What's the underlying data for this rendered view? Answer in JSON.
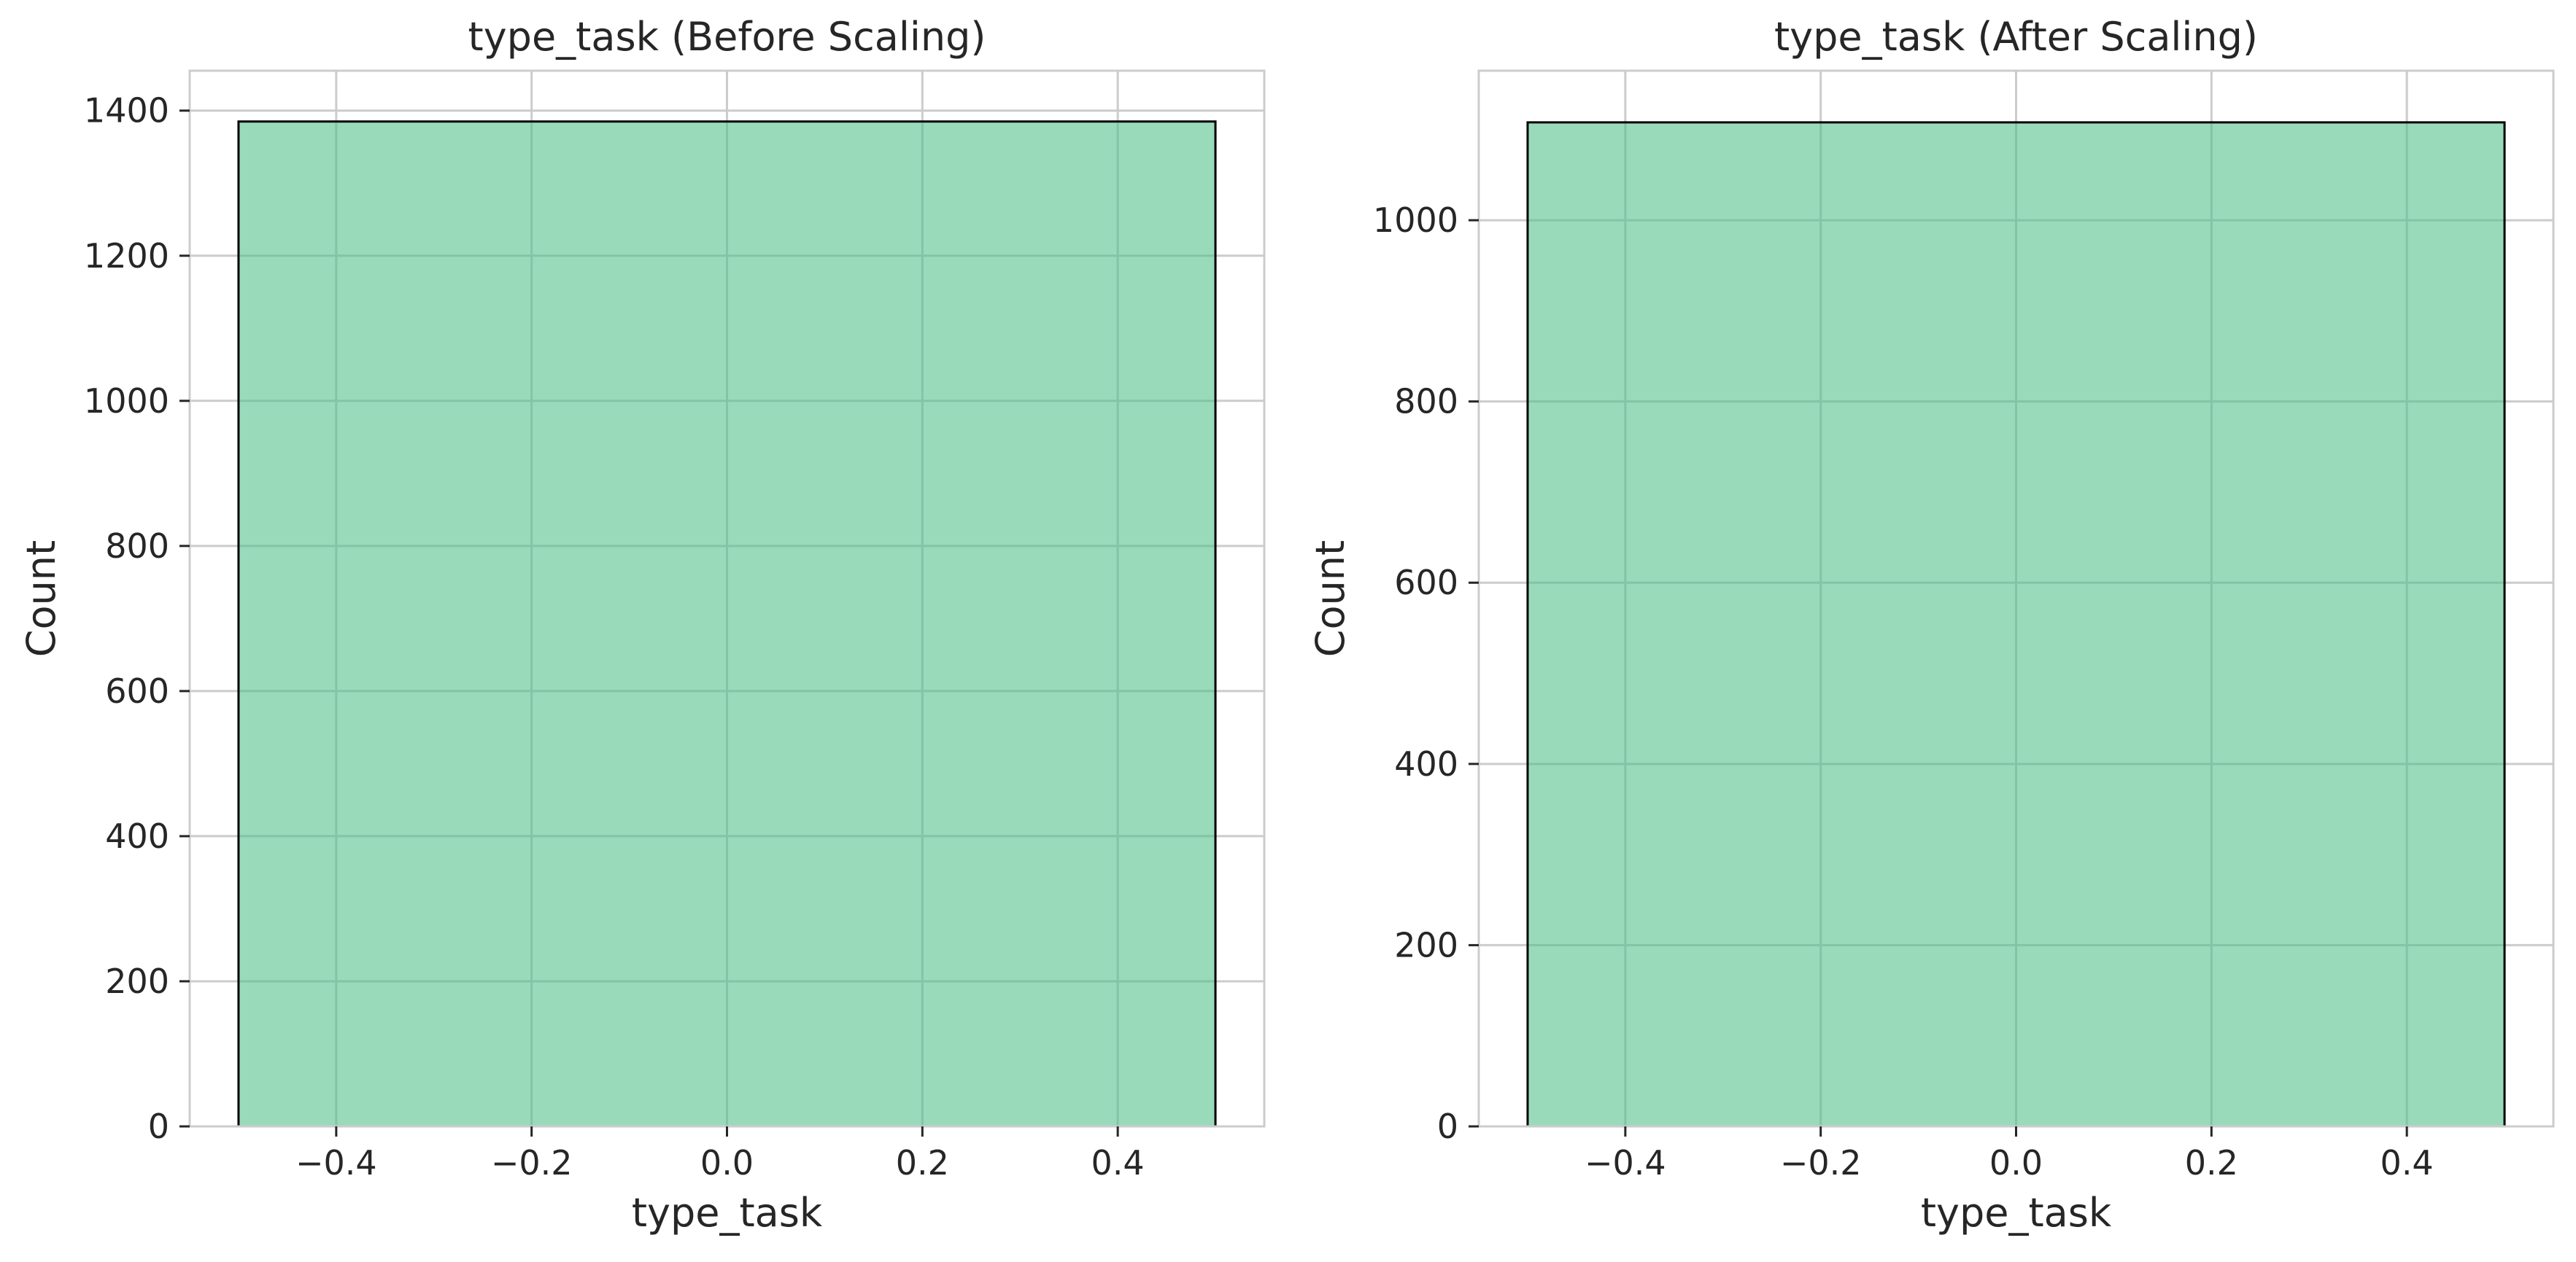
{
  "chart_data": [
    {
      "type": "bar",
      "title": "type_task (Before Scaling)",
      "xlabel": "type_task",
      "ylabel": "Count",
      "xlim": [
        -0.55,
        0.55
      ],
      "ylim": [
        0,
        1455
      ],
      "xticks": [
        -0.4,
        -0.2,
        0.0,
        0.2,
        0.4
      ],
      "xtick_labels": [
        "−0.4",
        "−0.2",
        "0.0",
        "0.2",
        "0.4"
      ],
      "yticks": [
        0,
        200,
        400,
        600,
        800,
        1000,
        1200,
        1400
      ],
      "ytick_labels": [
        "0",
        "200",
        "400",
        "600",
        "800",
        "1000",
        "1200",
        "1400"
      ],
      "bins": [
        {
          "x0": -0.5,
          "x1": 0.5,
          "count": 1385
        }
      ],
      "grid": true,
      "bar_color": "#99dabb",
      "edge_color": "#000000"
    },
    {
      "type": "bar",
      "title": "type_task (After Scaling)",
      "xlabel": "type_task",
      "ylabel": "Count",
      "xlim": [
        -0.55,
        0.55
      ],
      "ylim": [
        0,
        1165
      ],
      "xticks": [
        -0.4,
        -0.2,
        0.0,
        0.2,
        0.4
      ],
      "xtick_labels": [
        "−0.4",
        "−0.2",
        "0.0",
        "0.2",
        "0.4"
      ],
      "yticks": [
        0,
        200,
        400,
        600,
        800,
        1000
      ],
      "ytick_labels": [
        "0",
        "200",
        "400",
        "600",
        "800",
        "1000"
      ],
      "bins": [
        {
          "x0": -0.5,
          "x1": 0.5,
          "count": 1108
        }
      ],
      "grid": true,
      "bar_color": "#99dabb",
      "edge_color": "#000000"
    }
  ]
}
